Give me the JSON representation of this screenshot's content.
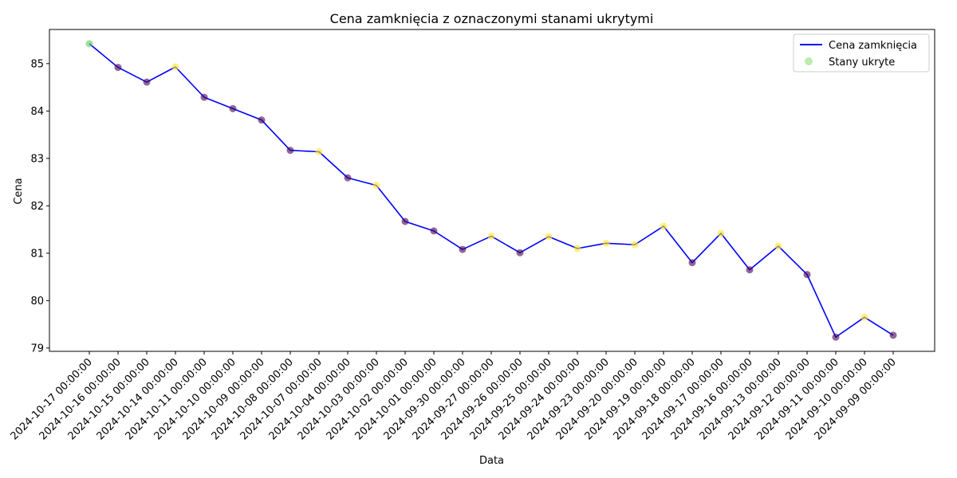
{
  "chart_data": {
    "type": "line",
    "title": "Cena zamknięcia z oznaczonymi stanami ukrytymi",
    "xlabel": "Data",
    "ylabel": "Cena",
    "ylim": [
      78.93,
      85.72
    ],
    "yticks": [
      79,
      80,
      81,
      82,
      83,
      84,
      85
    ],
    "x": [
      "2024-10-17 00:00:00",
      "2024-10-16 00:00:00",
      "2024-10-15 00:00:00",
      "2024-10-14 00:00:00",
      "2024-10-11 00:00:00",
      "2024-10-10 00:00:00",
      "2024-10-09 00:00:00",
      "2024-10-08 00:00:00",
      "2024-10-07 00:00:00",
      "2024-10-04 00:00:00",
      "2024-10-03 00:00:00",
      "2024-10-02 00:00:00",
      "2024-10-01 00:00:00",
      "2024-09-30 00:00:00",
      "2024-09-27 00:00:00",
      "2024-09-26 00:00:00",
      "2024-09-25 00:00:00",
      "2024-09-24 00:00:00",
      "2024-09-23 00:00:00",
      "2024-09-20 00:00:00",
      "2024-09-19 00:00:00",
      "2024-09-18 00:00:00",
      "2024-09-17 00:00:00",
      "2024-09-16 00:00:00",
      "2024-09-13 00:00:00",
      "2024-09-12 00:00:00",
      "2024-09-11 00:00:00",
      "2024-09-10 00:00:00",
      "2024-09-09 00:00:00"
    ],
    "series": [
      {
        "name": "Cena zamknięcia",
        "color": "#0000ff",
        "values": [
          85.42,
          84.92,
          84.61,
          84.93,
          84.29,
          84.05,
          83.81,
          83.17,
          83.14,
          82.59,
          82.43,
          81.67,
          81.47,
          81.08,
          81.36,
          81.01,
          81.35,
          81.1,
          81.21,
          81.18,
          81.57,
          80.8,
          81.42,
          80.65,
          81.15,
          80.55,
          79.23,
          79.65,
          79.27
        ]
      },
      {
        "name": "Stany ukryte",
        "type": "scatter",
        "legend_color": "#90dd78",
        "states": [
          2,
          0,
          0,
          1,
          0,
          0,
          0,
          0,
          1,
          0,
          1,
          0,
          0,
          0,
          1,
          0,
          1,
          1,
          1,
          1,
          1,
          0,
          1,
          0,
          1,
          0,
          0,
          1,
          0
        ],
        "state_colors": [
          "#440154",
          "#fde725",
          "#5ec962"
        ]
      }
    ],
    "legend": "top-right",
    "grid": false
  }
}
